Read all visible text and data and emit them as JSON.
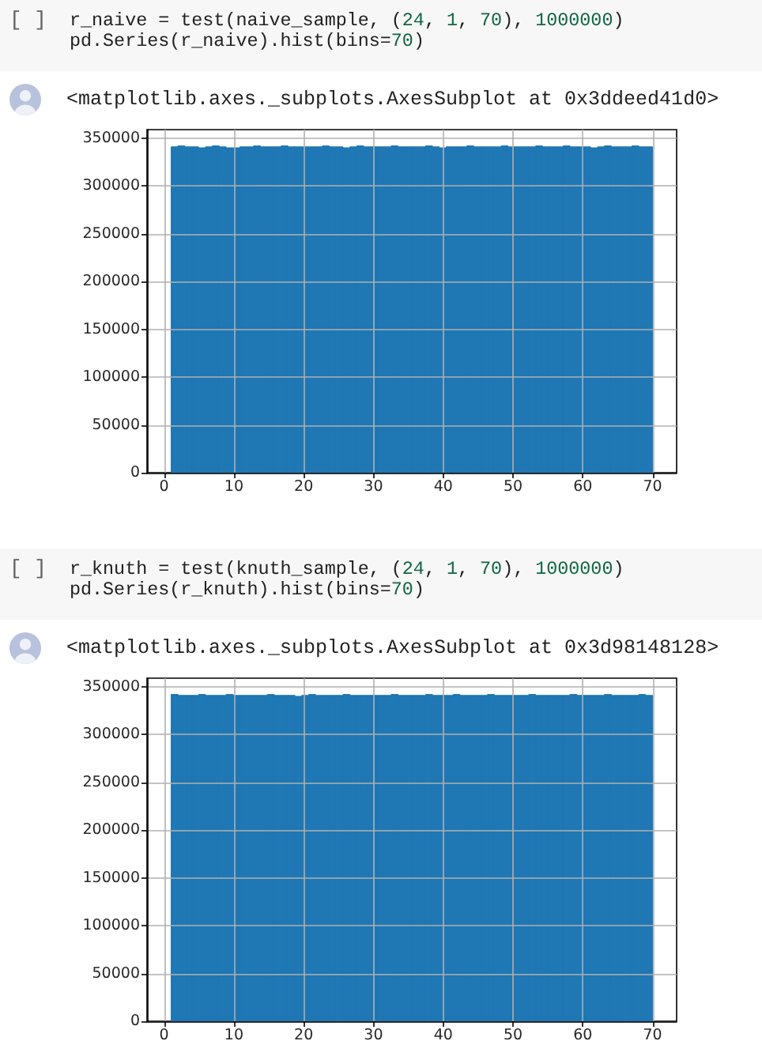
{
  "chart_data": [
    {
      "type": "histogram",
      "annotations": [
        "[ ]",
        "r_naive = test(naive_sample, (24, 1, 70), 1000000)",
        "pd.Series(r_naive).hist(bins=70)",
        "<matplotlib.axes._subplots.AxesSubplot at 0x3ddeed41d0>"
      ],
      "bins": [
        1,
        1.99,
        2.97,
        3.96,
        4.94,
        5.93,
        6.91,
        7.9,
        8.89,
        9.87,
        10.86,
        11.84,
        12.83,
        13.81,
        14.8,
        15.79,
        16.77,
        17.76,
        18.74,
        19.73,
        20.71,
        21.7,
        22.69,
        23.67,
        24.66,
        25.64,
        26.63,
        27.61,
        28.6,
        29.59,
        30.57,
        31.56,
        32.54,
        33.53,
        34.51,
        35.5,
        36.49,
        37.47,
        38.46,
        39.44,
        40.43,
        41.41,
        42.4,
        43.39,
        44.37,
        45.36,
        46.34,
        47.33,
        48.31,
        49.3,
        50.29,
        51.27,
        52.26,
        53.24,
        54.23,
        55.21,
        56.2,
        57.19,
        58.17,
        59.16,
        60.14,
        61.13,
        62.11,
        63.1,
        64.09,
        65.07,
        66.06,
        67.04,
        68.03,
        69.01,
        70
      ],
      "values": [
        341000,
        342000,
        341000,
        341000,
        340000,
        341000,
        342000,
        341000,
        340000,
        340000,
        341000,
        341000,
        342000,
        341000,
        341000,
        341000,
        342000,
        341000,
        341000,
        341000,
        341000,
        341000,
        342000,
        341000,
        341000,
        340000,
        341000,
        342000,
        341000,
        341000,
        341000,
        341000,
        342000,
        341000,
        341000,
        341000,
        341000,
        342000,
        341000,
        340000,
        341000,
        341000,
        341000,
        342000,
        341000,
        341000,
        341000,
        341000,
        342000,
        341000,
        341000,
        341000,
        341000,
        342000,
        341000,
        341000,
        341000,
        342000,
        341000,
        341000,
        341000,
        340000,
        341000,
        342000,
        341000,
        341000,
        341000,
        342000,
        341000,
        341000
      ],
      "color": "#1f77b4",
      "xlim": [
        -2.45,
        73.45
      ],
      "ylim": [
        0,
        359000
      ],
      "xticks": [
        0,
        10,
        20,
        30,
        40,
        50,
        60,
        70
      ],
      "yticks": [
        0,
        50000,
        100000,
        150000,
        200000,
        250000,
        300000,
        350000
      ],
      "grid": true
    },
    {
      "type": "histogram",
      "annotations": [
        "[ ]",
        "r_knuth = test(knuth_sample, (24, 1, 70), 1000000)",
        "pd.Series(r_knuth).hist(bins=70)",
        "<matplotlib.axes._subplots.AxesSubplot at 0x3d98148128>"
      ],
      "bins": [
        1,
        1.99,
        2.97,
        3.96,
        4.94,
        5.93,
        6.91,
        7.9,
        8.89,
        9.87,
        10.86,
        11.84,
        12.83,
        13.81,
        14.8,
        15.79,
        16.77,
        17.76,
        18.74,
        19.73,
        20.71,
        21.7,
        22.69,
        23.67,
        24.66,
        25.64,
        26.63,
        27.61,
        28.6,
        29.59,
        30.57,
        31.56,
        32.54,
        33.53,
        34.51,
        35.5,
        36.49,
        37.47,
        38.46,
        39.44,
        40.43,
        41.41,
        42.4,
        43.39,
        44.37,
        45.36,
        46.34,
        47.33,
        48.31,
        49.3,
        50.29,
        51.27,
        52.26,
        53.24,
        54.23,
        55.21,
        56.2,
        57.19,
        58.17,
        59.16,
        60.14,
        61.13,
        62.11,
        63.1,
        64.09,
        65.07,
        66.06,
        67.04,
        68.03,
        69.01,
        70
      ],
      "values": [
        342000,
        341000,
        341000,
        341000,
        342000,
        341000,
        341000,
        341000,
        342000,
        341000,
        341000,
        341000,
        341000,
        341000,
        342000,
        341000,
        341000,
        341000,
        340000,
        341000,
        342000,
        341000,
        341000,
        341000,
        341000,
        342000,
        341000,
        341000,
        341000,
        341000,
        341000,
        341000,
        342000,
        341000,
        341000,
        341000,
        341000,
        342000,
        341000,
        341000,
        341000,
        342000,
        341000,
        341000,
        341000,
        341000,
        342000,
        341000,
        341000,
        341000,
        341000,
        341000,
        342000,
        341000,
        341000,
        341000,
        341000,
        341000,
        342000,
        341000,
        341000,
        341000,
        341000,
        342000,
        341000,
        341000,
        341000,
        341000,
        342000,
        341000
      ],
      "color": "#1f77b4",
      "xlim": [
        -2.45,
        73.45
      ],
      "ylim": [
        0,
        359000
      ],
      "xticks": [
        0,
        10,
        20,
        30,
        40,
        50,
        60,
        70
      ],
      "yticks": [
        0,
        50000,
        100000,
        150000,
        200000,
        250000,
        300000,
        350000
      ],
      "grid": true
    }
  ]
}
